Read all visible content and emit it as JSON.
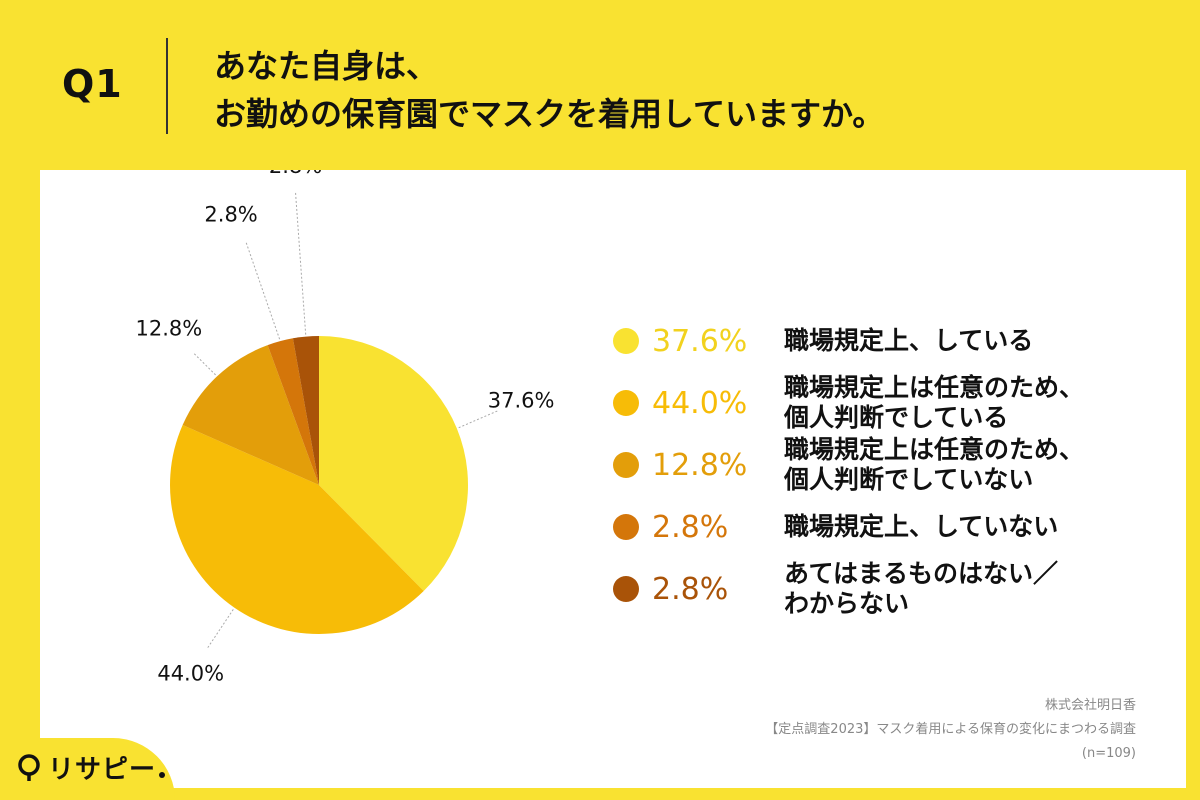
{
  "header": {
    "question_label": "Q1",
    "title_lines": [
      "あなた自身は、",
      "お勤めの保育園でマスクを着用していますか。"
    ]
  },
  "chart_data": {
    "type": "pie",
    "slices": [
      {
        "label": "職場規定上、している",
        "value": 37.6,
        "display": "37.6%",
        "color": "#F9E231"
      },
      {
        "label": "職場規定上は任意のため、\n個人判断でしている",
        "value": 44.0,
        "display": "44.0%",
        "color": "#F7BC07"
      },
      {
        "label": "職場規定上は任意のため、\n個人判断でしていない",
        "value": 12.8,
        "display": "12.8%",
        "color": "#E39E0A"
      },
      {
        "label": "職場規定上、していない",
        "value": 2.8,
        "display": "2.8%",
        "color": "#D4760A"
      },
      {
        "label": "あてはまるものはない／\nわからない",
        "value": 2.8,
        "display": "2.8%",
        "color": "#A95308"
      }
    ],
    "start": "12 o'clock",
    "direction": "clockwise",
    "legend_position": "right"
  },
  "source": {
    "company": "株式会社明日香",
    "survey": "【定点調査2023】マスク着用による保育の変化にまつわる調査",
    "sample": "(n=109)"
  },
  "logo": {
    "text": "リサピー"
  }
}
